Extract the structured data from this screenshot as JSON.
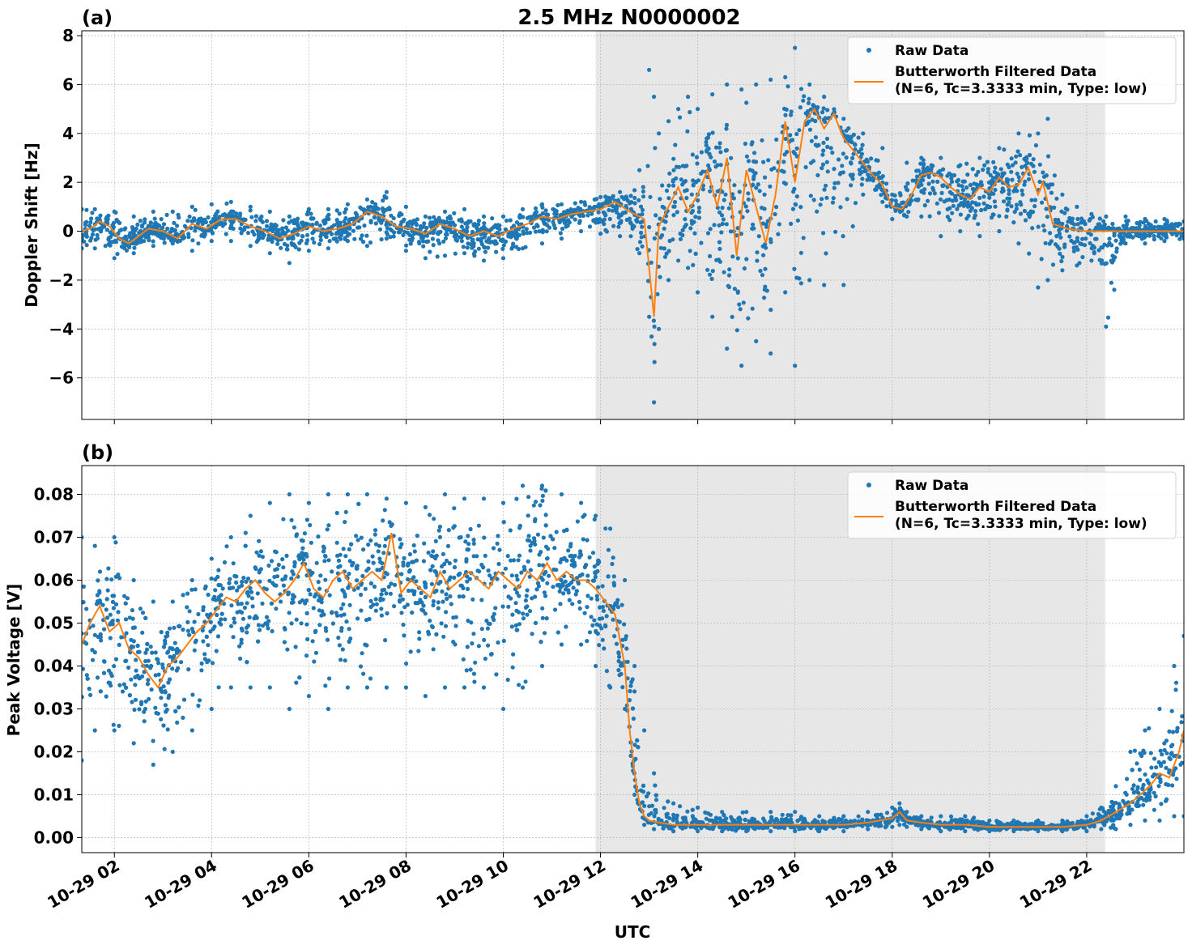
{
  "figure": {
    "title": "2.5 MHz N0000002",
    "xlabel": "UTC",
    "colors": {
      "raw": "#1f77b4",
      "filtered": "#ff7f0e",
      "shade": "#e7e7e7",
      "grid": "#b0b0b0"
    }
  },
  "chart_data": [
    {
      "type": "scatter",
      "panel_label": "(a)",
      "ylabel": "Doppler Shift [Hz]",
      "xlim": [
        1.33,
        24.0
      ],
      "ylim": [
        -7.7,
        8.2
      ],
      "yticks": [
        8,
        6,
        4,
        2,
        0,
        -2,
        -4,
        -6
      ],
      "ytick_labels": [
        "8",
        "6",
        "4",
        "2",
        "0",
        "−2",
        "−4",
        "−6"
      ],
      "xticks": [
        2,
        4,
        6,
        8,
        10,
        12,
        14,
        16,
        18,
        20,
        22
      ],
      "shaded_span": [
        11.9,
        22.38
      ],
      "legend": {
        "location": "upper right",
        "entries": [
          "Raw Data",
          "Butterworth Filtered Data",
          "(N=6, Tc=3.3333 min, Type: low)"
        ]
      },
      "series": [
        {
          "name": "Butterworth Filtered Data",
          "style": "line",
          "x": [
            1.33,
            1.5,
            1.7,
            1.9,
            2.1,
            2.3,
            2.5,
            2.7,
            3.0,
            3.3,
            3.6,
            3.9,
            4.2,
            4.5,
            4.8,
            5.1,
            5.4,
            5.7,
            6.0,
            6.3,
            6.6,
            6.9,
            7.2,
            7.5,
            7.8,
            8.1,
            8.4,
            8.7,
            9.0,
            9.3,
            9.6,
            9.9,
            10.2,
            10.5,
            10.8,
            11.1,
            11.4,
            11.7,
            12.0,
            12.3,
            12.6,
            12.9,
            13.0,
            13.1,
            13.2,
            13.4,
            13.6,
            13.8,
            14.0,
            14.2,
            14.4,
            14.6,
            14.8,
            15.0,
            15.2,
            15.4,
            15.6,
            15.8,
            16.0,
            16.2,
            16.4,
            16.6,
            16.8,
            17.0,
            17.2,
            17.4,
            17.6,
            17.8,
            18.0,
            18.2,
            18.4,
            18.6,
            18.8,
            19.0,
            19.2,
            19.4,
            19.6,
            19.8,
            20.0,
            20.2,
            20.4,
            20.6,
            20.8,
            21.0,
            21.1,
            21.3,
            21.6,
            22.0,
            22.4,
            22.8,
            23.2,
            23.6,
            24.0
          ],
          "y": [
            0.0,
            0.1,
            0.4,
            0.2,
            -0.3,
            -0.5,
            -0.2,
            0.1,
            0.0,
            -0.3,
            0.3,
            0.1,
            0.5,
            0.5,
            0.2,
            0.0,
            -0.3,
            -0.1,
            0.2,
            0.0,
            0.1,
            0.3,
            0.8,
            0.6,
            0.2,
            0.1,
            -0.1,
            0.3,
            0.1,
            -0.2,
            0.0,
            -0.2,
            0.1,
            0.3,
            0.6,
            0.5,
            0.7,
            0.8,
            0.9,
            1.2,
            0.8,
            0.5,
            -1.5,
            -3.5,
            0.2,
            1.0,
            1.8,
            0.8,
            1.5,
            2.5,
            1.0,
            3.0,
            -1.0,
            2.5,
            1.0,
            -0.5,
            1.5,
            4.5,
            2.0,
            4.5,
            5.0,
            4.2,
            4.8,
            3.8,
            3.3,
            2.8,
            2.3,
            1.9,
            1.0,
            0.9,
            1.5,
            2.3,
            2.4,
            2.2,
            1.8,
            1.5,
            1.3,
            1.8,
            1.6,
            2.2,
            1.8,
            1.9,
            2.6,
            1.5,
            2.0,
            0.3,
            0.1,
            0.0,
            0.0,
            0.0,
            0.0,
            0.0,
            0.0
          ]
        },
        {
          "name": "Raw Data",
          "style": "points",
          "x": [
            1.33,
            1.6,
            2.0,
            2.4,
            2.8,
            3.2,
            3.6,
            4.0,
            4.4,
            4.8,
            5.2,
            5.6,
            6.0,
            6.4,
            6.8,
            7.2,
            7.6,
            8.0,
            8.4,
            8.8,
            9.2,
            9.6,
            10.0,
            10.4,
            10.8,
            11.2,
            11.6,
            12.0,
            12.4,
            12.8,
            13.0,
            13.1,
            13.2,
            13.4,
            13.6,
            13.8,
            14.0,
            14.3,
            14.6,
            14.9,
            15.2,
            15.5,
            15.8,
            16.0,
            16.3,
            16.6,
            17.0,
            17.4,
            17.8,
            18.0,
            18.3,
            18.6,
            19.0,
            19.4,
            19.8,
            20.2,
            20.6,
            21.0,
            21.2,
            21.5,
            21.8,
            22.1,
            22.4,
            22.8,
            23.2,
            23.6,
            24.0
          ],
          "y_max": [
            0.9,
            0.9,
            0.8,
            0.6,
            0.8,
            0.8,
            1.0,
            1.1,
            1.2,
            1.0,
            0.8,
            0.6,
            0.9,
            0.9,
            1.1,
            1.3,
            1.6,
            1.0,
            0.6,
            0.8,
            0.9,
            0.6,
            0.6,
            0.9,
            1.1,
            1.1,
            1.2,
            1.4,
            1.6,
            2.5,
            6.6,
            5.5,
            4.0,
            4.5,
            5.0,
            5.5,
            5.0,
            5.6,
            6.0,
            5.8,
            6.0,
            6.2,
            6.3,
            7.5,
            6.0,
            5.5,
            4.6,
            4.0,
            3.4,
            1.5,
            2.8,
            3.0,
            3.0,
            2.7,
            3.0,
            3.4,
            4.0,
            4.0,
            4.6,
            1.5,
            1.0,
            0.7,
            0.6,
            0.6,
            0.5,
            0.5,
            0.4
          ],
          "y_min": [
            -0.7,
            -0.7,
            -1.1,
            -0.9,
            -0.6,
            -0.5,
            -0.8,
            -0.4,
            -0.4,
            -0.6,
            -0.9,
            -1.3,
            -0.8,
            -0.7,
            -0.4,
            -0.6,
            -0.3,
            -0.8,
            -1.1,
            -1.0,
            -0.9,
            -1.2,
            -1.1,
            -0.7,
            -0.5,
            -0.3,
            0.0,
            -0.1,
            -0.2,
            -0.9,
            -3.5,
            -7.0,
            -4.0,
            -2.0,
            -1.2,
            -1.5,
            -2.5,
            -3.5,
            -4.8,
            -5.5,
            -4.5,
            -5.0,
            -2.5,
            -5.5,
            -2.0,
            -2.2,
            -2.2,
            1.5,
            1.2,
            0.5,
            0.6,
            0.6,
            -0.2,
            0.0,
            -0.2,
            0.0,
            -0.5,
            -2.3,
            -2.0,
            -1.6,
            -1.4,
            -1.2,
            -3.9,
            -0.5,
            -0.5,
            -0.4,
            -0.3
          ]
        }
      ]
    },
    {
      "type": "scatter",
      "panel_label": "(b)",
      "ylabel": "Peak Voltage [V]",
      "xlim": [
        1.33,
        24.0
      ],
      "ylim": [
        -0.0035,
        0.0867
      ],
      "yticks": [
        0.08,
        0.07,
        0.06,
        0.05,
        0.04,
        0.03,
        0.02,
        0.01,
        0.0
      ],
      "ytick_labels": [
        "0.08",
        "0.07",
        "0.06",
        "0.05",
        "0.04",
        "0.03",
        "0.02",
        "0.01",
        "0.00"
      ],
      "xticks": [
        2,
        4,
        6,
        8,
        10,
        12,
        14,
        16,
        18,
        20,
        22
      ],
      "xtick_labels": [
        "10-29 02",
        "10-29 04",
        "10-29 06",
        "10-29 08",
        "10-29 10",
        "10-29 12",
        "10-29 14",
        "10-29 16",
        "10-29 18",
        "10-29 20",
        "10-29 22"
      ],
      "shaded_span": [
        11.9,
        22.38
      ],
      "legend": {
        "location": "upper right",
        "entries": [
          "Raw Data",
          "Butterworth Filtered Data",
          "(N=6, Tc=3.3333 min, Type: low)"
        ]
      },
      "series": [
        {
          "name": "Butterworth Filtered Data",
          "style": "line",
          "x": [
            1.33,
            1.5,
            1.7,
            1.9,
            2.1,
            2.3,
            2.5,
            2.7,
            2.9,
            3.1,
            3.3,
            3.5,
            3.7,
            3.9,
            4.1,
            4.3,
            4.5,
            4.7,
            4.9,
            5.1,
            5.3,
            5.5,
            5.7,
            5.9,
            6.1,
            6.3,
            6.5,
            6.7,
            6.9,
            7.1,
            7.3,
            7.5,
            7.7,
            7.9,
            8.1,
            8.3,
            8.5,
            8.7,
            8.9,
            9.1,
            9.3,
            9.5,
            9.7,
            9.9,
            10.1,
            10.3,
            10.5,
            10.7,
            10.9,
            11.1,
            11.3,
            11.5,
            11.7,
            11.9,
            12.1,
            12.3,
            12.5,
            12.6,
            12.7,
            12.8,
            12.9,
            13.0,
            13.2,
            13.5,
            14.0,
            14.5,
            15.0,
            15.5,
            16.0,
            16.5,
            17.0,
            17.5,
            18.0,
            18.15,
            18.3,
            18.6,
            19.0,
            19.5,
            20.0,
            20.5,
            21.0,
            21.5,
            22.0,
            22.3,
            22.6,
            22.9,
            23.1,
            23.3,
            23.5,
            23.7,
            23.9,
            24.0
          ],
          "y": [
            0.045,
            0.05,
            0.054,
            0.048,
            0.05,
            0.044,
            0.042,
            0.038,
            0.035,
            0.04,
            0.042,
            0.045,
            0.048,
            0.05,
            0.053,
            0.056,
            0.055,
            0.058,
            0.06,
            0.057,
            0.055,
            0.057,
            0.06,
            0.064,
            0.058,
            0.056,
            0.06,
            0.062,
            0.058,
            0.06,
            0.062,
            0.06,
            0.071,
            0.057,
            0.06,
            0.058,
            0.056,
            0.062,
            0.058,
            0.06,
            0.062,
            0.06,
            0.058,
            0.062,
            0.06,
            0.058,
            0.062,
            0.06,
            0.064,
            0.06,
            0.062,
            0.06,
            0.06,
            0.058,
            0.055,
            0.052,
            0.04,
            0.025,
            0.015,
            0.008,
            0.005,
            0.004,
            0.0035,
            0.003,
            0.003,
            0.003,
            0.003,
            0.003,
            0.003,
            0.003,
            0.003,
            0.0035,
            0.0045,
            0.006,
            0.004,
            0.0035,
            0.003,
            0.003,
            0.0025,
            0.0025,
            0.0025,
            0.0025,
            0.003,
            0.004,
            0.006,
            0.008,
            0.01,
            0.012,
            0.015,
            0.014,
            0.02,
            0.025
          ]
        },
        {
          "name": "Raw Data",
          "style": "points",
          "x": [
            1.33,
            1.6,
            2.0,
            2.4,
            2.8,
            3.2,
            3.6,
            4.0,
            4.4,
            4.8,
            5.2,
            5.6,
            6.0,
            6.4,
            6.8,
            7.2,
            7.6,
            8.0,
            8.4,
            8.8,
            9.2,
            9.6,
            10.0,
            10.4,
            10.8,
            11.2,
            11.6,
            11.9,
            12.2,
            12.5,
            12.7,
            12.9,
            13.1,
            13.5,
            14.0,
            14.5,
            15.0,
            15.5,
            16.0,
            16.5,
            17.0,
            17.5,
            18.0,
            18.15,
            18.3,
            18.6,
            19.0,
            19.5,
            20.0,
            20.5,
            21.0,
            21.5,
            22.0,
            22.3,
            22.6,
            22.9,
            23.2,
            23.5,
            23.8,
            24.0
          ],
          "y_max": [
            0.07,
            0.068,
            0.07,
            0.06,
            0.055,
            0.055,
            0.06,
            0.065,
            0.07,
            0.075,
            0.078,
            0.08,
            0.078,
            0.08,
            0.08,
            0.08,
            0.079,
            0.078,
            0.077,
            0.08,
            0.079,
            0.079,
            0.078,
            0.082,
            0.082,
            0.08,
            0.078,
            0.075,
            0.072,
            0.06,
            0.04,
            0.025,
            0.015,
            0.008,
            0.007,
            0.006,
            0.006,
            0.006,
            0.006,
            0.005,
            0.005,
            0.006,
            0.007,
            0.008,
            0.006,
            0.005,
            0.005,
            0.005,
            0.004,
            0.004,
            0.004,
            0.004,
            0.005,
            0.007,
            0.012,
            0.02,
            0.025,
            0.03,
            0.04,
            0.047
          ],
          "y_min": [
            0.018,
            0.025,
            0.025,
            0.022,
            0.017,
            0.02,
            0.025,
            0.03,
            0.035,
            0.035,
            0.035,
            0.03,
            0.033,
            0.03,
            0.035,
            0.035,
            0.035,
            0.035,
            0.033,
            0.035,
            0.035,
            0.035,
            0.03,
            0.035,
            0.04,
            0.045,
            0.045,
            0.04,
            0.035,
            0.03,
            0.01,
            0.003,
            0.002,
            0.0015,
            0.0015,
            0.0015,
            0.0015,
            0.0015,
            0.0015,
            0.0015,
            0.0015,
            0.002,
            0.0025,
            0.003,
            0.0025,
            0.002,
            0.0015,
            0.0015,
            0.0015,
            0.0015,
            0.0015,
            0.0015,
            0.0015,
            0.002,
            0.002,
            0.003,
            0.004,
            0.004,
            0.005,
            0.005
          ]
        }
      ]
    }
  ]
}
